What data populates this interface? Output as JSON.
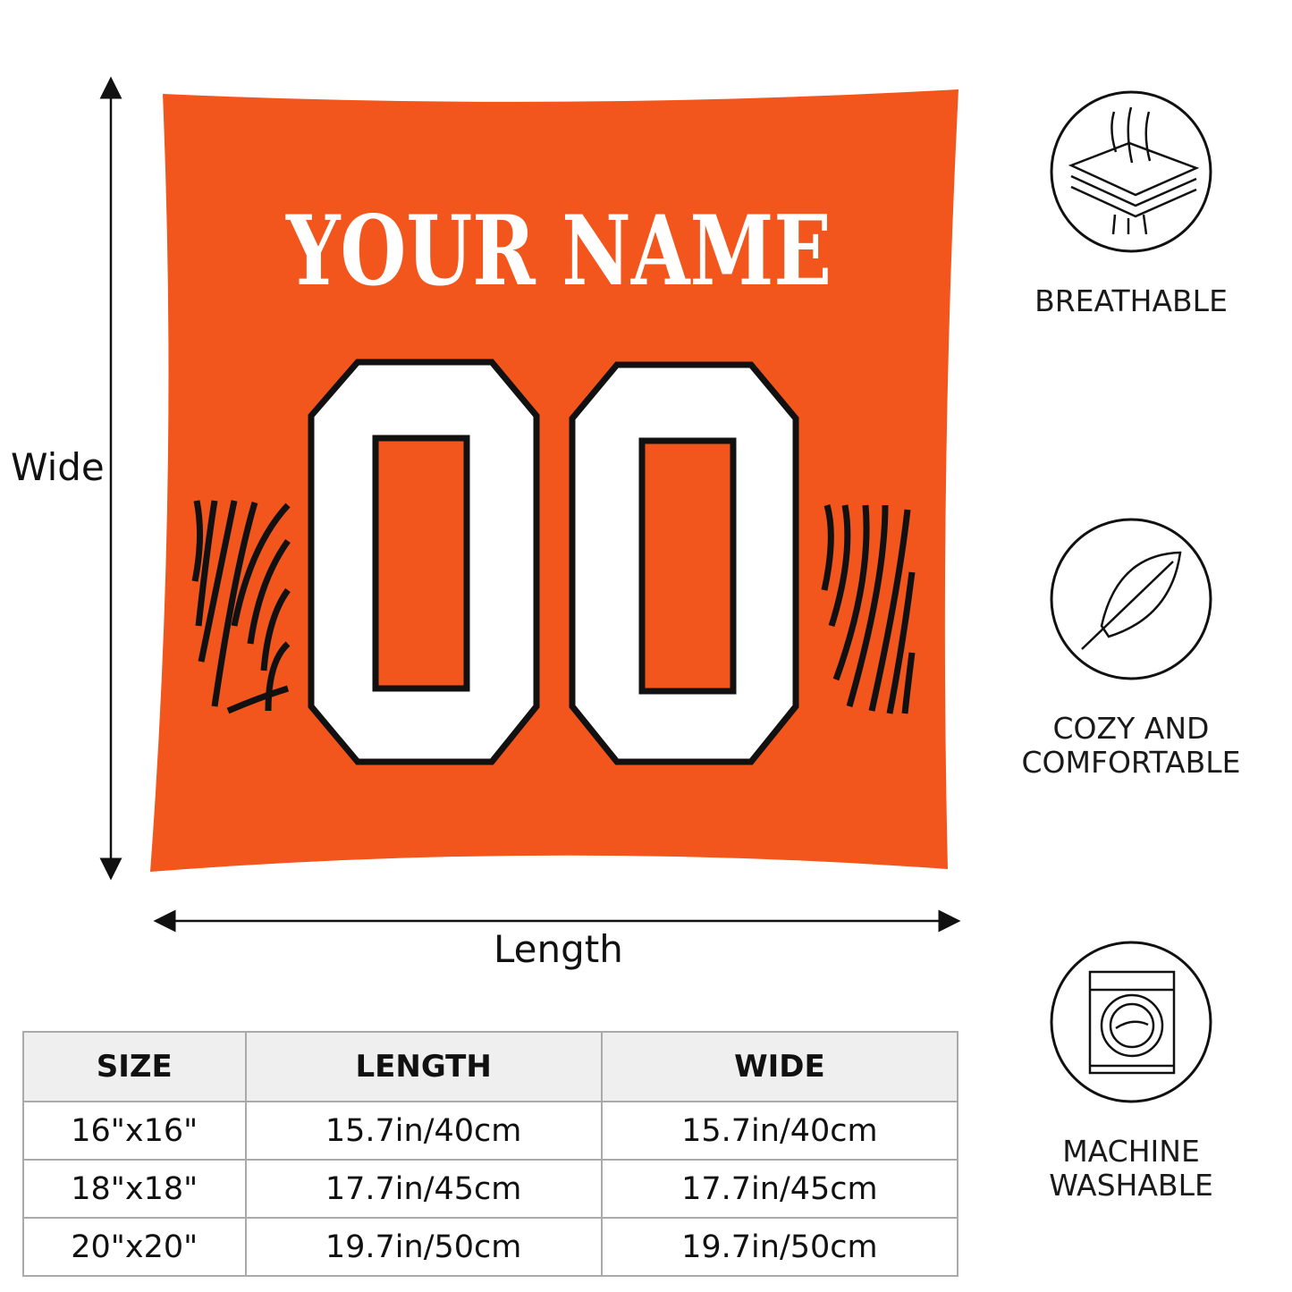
{
  "product": {
    "name_text": "YOUR NAME",
    "number_text": "00",
    "colors": {
      "pillow": "#F2561D",
      "numbers": "#FFFFFF",
      "outline": "#111111",
      "stripes": "#111111"
    }
  },
  "dimensions": {
    "vertical_label": "Wide",
    "horizontal_label": "Length"
  },
  "features": [
    {
      "icon": "breathable-layers-icon",
      "lines": [
        "BREATHABLE"
      ]
    },
    {
      "icon": "feather-icon",
      "lines": [
        "COZY AND",
        "COMFORTABLE"
      ]
    },
    {
      "icon": "washing-machine-icon",
      "lines": [
        "MACHINE",
        "WASHABLE"
      ]
    }
  ],
  "size_table": {
    "headers": [
      "SIZE",
      "LENGTH",
      "WIDE"
    ],
    "rows": [
      [
        "16\"x16\"",
        "15.7in/40cm",
        "15.7in/40cm"
      ],
      [
        "18\"x18\"",
        "17.7in/45cm",
        "17.7in/45cm"
      ],
      [
        "20\"x20\"",
        "19.7in/50cm",
        "19.7in/50cm"
      ]
    ]
  }
}
